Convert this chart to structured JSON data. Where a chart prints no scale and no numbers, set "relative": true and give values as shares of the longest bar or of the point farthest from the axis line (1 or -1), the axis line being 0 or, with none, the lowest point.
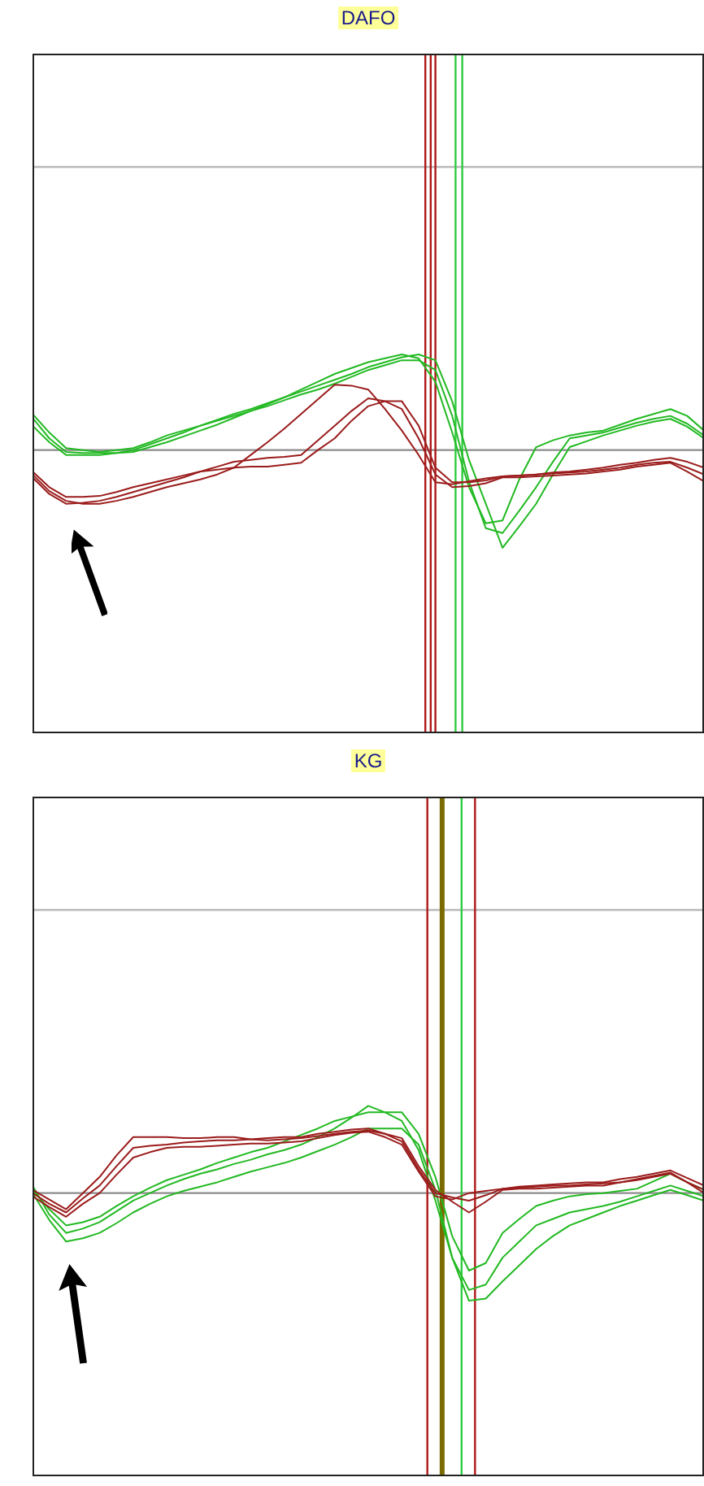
{
  "chart_data": [
    {
      "type": "line",
      "title": "DAFO",
      "relative": true,
      "marker": "none",
      "categories": [
        null,
        null,
        null,
        null,
        null,
        null,
        null,
        null,
        null,
        null,
        null,
        null,
        null,
        null,
        null,
        null,
        null,
        null,
        null,
        null,
        null,
        null,
        null,
        null,
        null,
        null,
        null,
        null,
        null,
        null,
        null,
        null,
        null,
        null,
        null,
        null,
        null,
        null,
        null,
        null,
        null
      ],
      "series": [
        {
          "color": "#22b922",
          "values": [
            0.33,
            0.12,
            -0.02,
            -0.03,
            -0.03,
            -0.03,
            -0.02,
            0.03,
            0.08,
            0.14,
            0.2,
            0.26,
            0.33,
            0.4,
            0.47,
            0.54,
            0.62,
            0.7,
            0.78,
            0.84,
            0.9,
            0.94,
            0.98,
            0.94,
            0.7,
            0.18,
            -0.38,
            -0.75,
            -0.72,
            -0.3,
            0.03,
            0.1,
            0.15,
            0.18,
            0.2,
            0.26,
            0.32,
            0.37,
            0.42,
            0.35,
            0.2
          ]
        },
        {
          "color": "#22b922",
          "values": [
            0.25,
            0.08,
            -0.05,
            -0.05,
            -0.05,
            -0.03,
            0,
            0.06,
            0.12,
            0.18,
            0.25,
            0.31,
            0.37,
            0.42,
            0.48,
            0.54,
            0.6,
            0.66,
            0.72,
            0.78,
            0.85,
            0.9,
            0.95,
            0.98,
            0.92,
            0.5,
            -0.1,
            -0.55,
            -1,
            -0.78,
            -0.55,
            -0.25,
            0.03,
            0.09,
            0.15,
            0.2,
            0.25,
            0.29,
            0.32,
            0.24,
            0.12
          ]
        },
        {
          "color": "#22b922",
          "values": [
            0.37,
            0.18,
            0.02,
            0,
            -0.02,
            0,
            0.02,
            0.08,
            0.15,
            0.2,
            0.25,
            0.3,
            0.35,
            0.4,
            0.45,
            0.51,
            0.57,
            0.62,
            0.68,
            0.75,
            0.82,
            0.87,
            0.92,
            0.92,
            0.82,
            0.35,
            -0.32,
            -0.8,
            -0.85,
            -0.62,
            -0.38,
            -0.12,
            0.12,
            0.15,
            0.18,
            0.23,
            0.28,
            0.32,
            0.35,
            0.27,
            0.15
          ]
        },
        {
          "color": "#9b1c1c",
          "values": [
            -0.25,
            -0.42,
            -0.52,
            -0.55,
            -0.55,
            -0.52,
            -0.48,
            -0.43,
            -0.38,
            -0.34,
            -0.3,
            -0.25,
            -0.18,
            -0.05,
            0.08,
            0.22,
            0.37,
            0.52,
            0.67,
            0.66,
            0.62,
            0.42,
            0.2,
            -0.05,
            -0.33,
            -0.35,
            -0.32,
            -0.29,
            -0.27,
            -0.26,
            -0.25,
            -0.24,
            -0.23,
            -0.22,
            -0.2,
            -0.18,
            -0.15,
            -0.13,
            -0.12,
            -0.18,
            -0.25
          ]
        },
        {
          "color": "#9b1c1c",
          "values": [
            -0.28,
            -0.45,
            -0.55,
            -0.54,
            -0.52,
            -0.48,
            -0.43,
            -0.38,
            -0.33,
            -0.28,
            -0.22,
            -0.17,
            -0.12,
            -0.1,
            -0.08,
            -0.07,
            -0.05,
            0.1,
            0.25,
            0.4,
            0.53,
            0.5,
            0.42,
            0.12,
            -0.25,
            -0.38,
            -0.37,
            -0.34,
            -0.28,
            -0.28,
            -0.27,
            -0.26,
            -0.25,
            -0.24,
            -0.22,
            -0.2,
            -0.17,
            -0.15,
            -0.13,
            -0.22,
            -0.32
          ]
        },
        {
          "color": "#9b1c1c",
          "values": [
            -0.22,
            -0.38,
            -0.48,
            -0.48,
            -0.47,
            -0.43,
            -0.38,
            -0.34,
            -0.3,
            -0.26,
            -0.22,
            -0.2,
            -0.18,
            -0.17,
            -0.17,
            -0.15,
            -0.13,
            0,
            0.12,
            0.3,
            0.45,
            0.5,
            0.5,
            0.25,
            -0.18,
            -0.33,
            -0.33,
            -0.31,
            -0.27,
            -0.26,
            -0.25,
            -0.23,
            -0.22,
            -0.2,
            -0.18,
            -0.15,
            -0.13,
            -0.1,
            -0.08,
            -0.12,
            -0.18
          ]
        }
      ],
      "ref_lines": [
        {
          "axis": "y",
          "value": 0,
          "color": "#8c8c8c"
        },
        {
          "axis": "y",
          "value": 2.9,
          "color": "#b4b4b4"
        }
      ]
    },
    {
      "type": "line",
      "title": "KG",
      "relative": true,
      "marker": "none",
      "categories": [
        null,
        null,
        null,
        null,
        null,
        null,
        null,
        null,
        null,
        null,
        null,
        null,
        null,
        null,
        null,
        null,
        null,
        null,
        null,
        null,
        null,
        null,
        null,
        null,
        null,
        null,
        null,
        null,
        null,
        null,
        null,
        null,
        null,
        null,
        null,
        null,
        null,
        null,
        null,
        null,
        null
      ],
      "series": [
        {
          "color": "#22b922",
          "values": [
            0.07,
            -0.2,
            -0.37,
            -0.33,
            -0.27,
            -0.17,
            -0.07,
            0,
            0.07,
            0.13,
            0.18,
            0.22,
            0.27,
            0.31,
            0.36,
            0.4,
            0.45,
            0.52,
            0.6,
            0.7,
            0.81,
            0.75,
            0.67,
            0.4,
            -0.07,
            -0.6,
            -0.9,
            -0.85,
            -0.6,
            -0.45,
            -0.3,
            -0.24,
            -0.18,
            -0.15,
            -0.12,
            -0.08,
            -0.03,
            0.02,
            0.07,
            0.02,
            -0.03
          ]
        },
        {
          "color": "#22b922",
          "values": [
            0,
            -0.25,
            -0.45,
            -0.42,
            -0.37,
            -0.28,
            -0.18,
            -0.1,
            -0.03,
            0.02,
            0.06,
            0.1,
            0.15,
            0.2,
            0.24,
            0.28,
            0.33,
            0.39,
            0.45,
            0.52,
            0.6,
            0.6,
            0.6,
            0.45,
            0.03,
            -0.6,
            -1,
            -0.98,
            -0.82,
            -0.67,
            -0.52,
            -0.4,
            -0.3,
            -0.24,
            -0.18,
            -0.12,
            -0.07,
            -0.02,
            0.03,
            -0.02,
            -0.07
          ]
        },
        {
          "color": "#22b922",
          "values": [
            0.03,
            -0.15,
            -0.3,
            -0.27,
            -0.22,
            -0.12,
            -0.03,
            0.05,
            0.12,
            0.17,
            0.22,
            0.28,
            0.33,
            0.38,
            0.42,
            0.48,
            0.54,
            0.6,
            0.67,
            0.71,
            0.75,
            0.75,
            0.75,
            0.55,
            0.15,
            -0.4,
            -0.72,
            -0.65,
            -0.37,
            -0.24,
            -0.12,
            -0.07,
            -0.03,
            -0.01,
            0,
            0.02,
            0.04,
            0.11,
            0.18,
            0.1,
            0.03
          ]
        },
        {
          "color": "#9b1c1c",
          "values": [
            0,
            -0.1,
            -0.18,
            -0.05,
            0.07,
            0.25,
            0.42,
            0.44,
            0.45,
            0.47,
            0.48,
            0.49,
            0.49,
            0.5,
            0.51,
            0.52,
            0.52,
            0.55,
            0.57,
            0.59,
            0.6,
            0.55,
            0.48,
            0.22,
            0,
            -0.04,
            -0.07,
            -0.02,
            0.04,
            0.06,
            0.07,
            0.08,
            0.09,
            0.1,
            0.1,
            0.13,
            0.15,
            0.18,
            0.21,
            0.14,
            0.07
          ]
        },
        {
          "color": "#9b1c1c",
          "values": [
            -0.03,
            -0.13,
            -0.22,
            -0.1,
            0,
            0.17,
            0.33,
            0.38,
            0.42,
            0.43,
            0.43,
            0.44,
            0.45,
            0.46,
            0.46,
            0.47,
            0.48,
            0.51,
            0.54,
            0.56,
            0.57,
            0.52,
            0.45,
            0.2,
            -0.03,
            -0.06,
            0,
            0.02,
            0.04,
            0.05,
            0.06,
            0.07,
            0.07,
            0.08,
            0.09,
            0.1,
            0.12,
            0.15,
            0.18,
            0.1,
            0.03
          ]
        },
        {
          "color": "#9b1c1c",
          "values": [
            0.03,
            -0.06,
            -0.15,
            0,
            0.15,
            0.35,
            0.52,
            0.52,
            0.52,
            0.51,
            0.51,
            0.52,
            0.52,
            0.5,
            0.49,
            0.5,
            0.51,
            0.53,
            0.55,
            0.57,
            0.58,
            0.55,
            0.51,
            0.25,
            0.03,
            -0.08,
            -0.18,
            -0.08,
            0.03,
            0.04,
            0.04,
            0.05,
            0.06,
            0.07,
            0.07,
            0.1,
            0.13,
            0.16,
            0.19,
            0.1,
            0
          ]
        }
      ],
      "ref_lines": [
        {
          "axis": "y",
          "value": 0,
          "color": "#8c8c8c"
        },
        {
          "axis": "y",
          "value": 2.63,
          "color": "#b4b4b4"
        }
      ]
    }
  ]
}
